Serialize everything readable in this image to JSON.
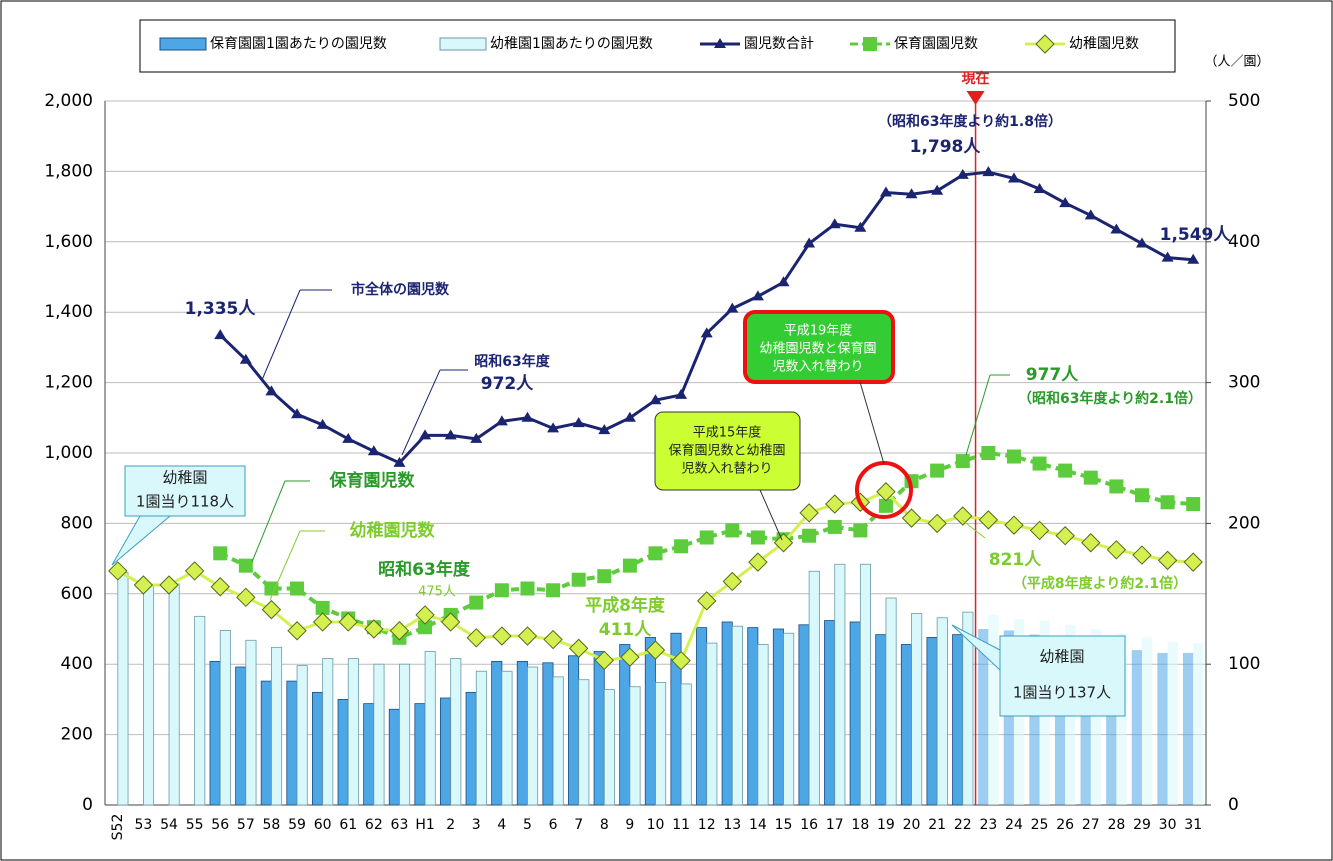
{
  "chart_data": {
    "type": "bar_line",
    "y2_label": "（人／園）",
    "categories": [
      "S52",
      "53",
      "54",
      "55",
      "56",
      "57",
      "58",
      "59",
      "60",
      "61",
      "62",
      "63",
      "H1",
      "2",
      "3",
      "4",
      "5",
      "6",
      "7",
      "8",
      "9",
      "10",
      "11",
      "12",
      "13",
      "14",
      "15",
      "16",
      "17",
      "18",
      "19",
      "20",
      "21",
      "22",
      "23",
      "24",
      "25",
      "26",
      "27",
      "28",
      "29",
      "30",
      "31"
    ],
    "ylim": [
      0,
      2000
    ],
    "yticks": [
      0,
      200,
      400,
      600,
      800,
      {
        "value": 1000,
        "label": "1,000"
      },
      {
        "value": 1200,
        "label": "1,200"
      },
      {
        "value": 1400,
        "label": "1,400"
      },
      {
        "value": 1600,
        "label": "1,600"
      },
      {
        "value": 1800,
        "label": "1,800"
      },
      {
        "value": 2000,
        "label": "2,000"
      }
    ],
    "y2lim": [
      0,
      500
    ],
    "y2ticks": [
      0,
      100,
      200,
      300,
      400,
      500
    ],
    "current_label": "現在",
    "series": [
      {
        "name": "保育園園1園あたりの園児数",
        "kind": "bar",
        "axis": "y2",
        "color": "#4da6e6",
        "values": [
          null,
          null,
          null,
          null,
          102,
          98,
          88,
          88,
          80,
          75,
          72,
          68,
          72,
          76,
          80,
          102,
          102,
          101,
          106,
          109,
          114,
          119,
          122,
          126,
          130,
          126,
          125,
          128,
          131,
          130,
          121,
          114,
          119,
          121,
          125,
          124,
          121,
          118,
          115,
          112,
          110,
          108,
          108
        ]
      },
      {
        "name": "幼稚園1園あたりの園児数",
        "kind": "bar",
        "axis": "y2",
        "color": "#d9f8fb",
        "values": [
          165,
          157,
          157,
          134,
          124,
          117,
          112,
          99,
          104,
          104,
          100,
          100,
          109,
          104,
          95,
          95,
          98,
          91,
          89,
          82,
          84,
          87,
          86,
          115,
          127,
          114,
          122,
          166,
          171,
          171,
          147,
          136,
          133,
          137,
          135,
          132,
          131,
          128,
          125,
          122,
          119,
          116,
          115
        ]
      },
      {
        "name": "園児数合計",
        "kind": "line",
        "marker": "triangle",
        "color": "#1b2470",
        "values": [
          null,
          null,
          null,
          null,
          1335,
          1265,
          1175,
          1110,
          1080,
          1040,
          1005,
          972,
          1050,
          1050,
          1040,
          1090,
          1100,
          1070,
          1085,
          1065,
          1100,
          1150,
          1165,
          1340,
          1410,
          1445,
          1485,
          1595,
          1650,
          1640,
          1740,
          1735,
          1745,
          1790,
          1798,
          1780,
          1750,
          1710,
          1675,
          1635,
          1595,
          1555,
          1549
        ]
      },
      {
        "name": "保育園園児数",
        "kind": "line",
        "marker": "square",
        "color": "#5ccc3c",
        "values": [
          null,
          null,
          null,
          null,
          715,
          680,
          615,
          615,
          560,
          530,
          505,
          475,
          505,
          540,
          575,
          610,
          615,
          610,
          640,
          650,
          680,
          715,
          735,
          760,
          780,
          760,
          755,
          765,
          790,
          780,
          850,
          920,
          950,
          977,
          1000,
          990,
          970,
          950,
          930,
          905,
          880,
          860,
          855
        ]
      },
      {
        "name": "幼稚園児数",
        "kind": "line",
        "marker": "diamond",
        "color": "#d4f050",
        "values": [
          665,
          625,
          625,
          665,
          620,
          590,
          555,
          495,
          520,
          520,
          500,
          495,
          540,
          520,
          475,
          480,
          480,
          470,
          445,
          411,
          420,
          440,
          410,
          580,
          635,
          690,
          745,
          830,
          855,
          860,
          890,
          815,
          800,
          821,
          810,
          795,
          780,
          765,
          745,
          725,
          710,
          695,
          690
        ]
      }
    ],
    "annotations": [
      "1,335人",
      "市全体の園児数",
      "昭和63年度",
      "972人",
      "（昭和63年度より約1.8倍）",
      "1,798人",
      "1,549人",
      "977人",
      "（昭和63年度より約2.1倍）",
      "平成19年度",
      "幼稚園児数と保育園",
      "児数入れ替わり",
      "平成15年度",
      "保育園児数と幼稚園",
      "児数入れ替わり",
      "保育園児数",
      "幼稚園児数",
      "昭和63年度",
      "475人",
      "平成8年度",
      "411人",
      "821人",
      "（平成8年度より約2.1倍）",
      "幼稚園",
      "1園当り118人",
      "幼稚園",
      "1園当り137人"
    ]
  }
}
